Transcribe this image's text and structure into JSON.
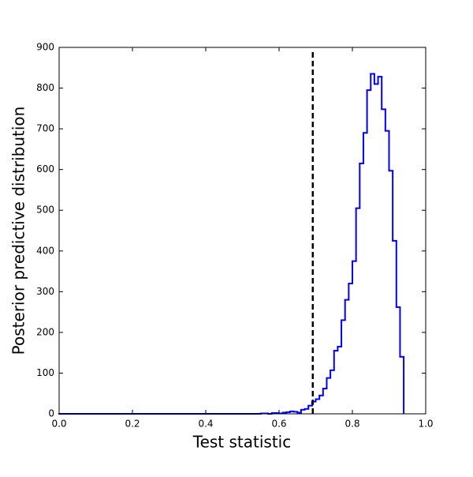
{
  "chart_data": {
    "type": "histogram",
    "xlabel": "Test statistic",
    "ylabel": "Posterior predictive distribution",
    "bins": [
      0,
      0.01,
      0.02,
      0.03,
      0.04,
      0.05,
      0.06,
      0.07,
      0.08,
      0.09,
      0.1,
      0.11,
      0.12,
      0.13,
      0.14,
      0.15,
      0.16,
      0.17,
      0.18,
      0.19,
      0.2,
      0.21,
      0.22,
      0.23,
      0.24,
      0.25,
      0.26,
      0.27,
      0.28,
      0.29,
      0.3,
      0.31,
      0.32,
      0.33,
      0.34,
      0.35,
      0.36,
      0.37,
      0.38,
      0.39,
      0.4,
      0.41,
      0.42,
      0.43,
      0.44,
      0.45,
      0.46,
      0.47,
      0.48,
      0.49,
      0.5,
      0.51,
      0.52,
      0.53,
      0.54,
      0.55,
      0.56,
      0.57,
      0.58,
      0.59,
      0.6,
      0.61,
      0.62,
      0.63,
      0.64,
      0.65,
      0.66,
      0.67,
      0.68,
      0.69,
      0.7,
      0.71,
      0.72,
      0.73,
      0.74,
      0.75,
      0.76,
      0.77,
      0.78,
      0.79,
      0.8,
      0.81,
      0.82,
      0.83,
      0.84,
      0.85,
      0.86,
      0.87,
      0.88,
      0.89,
      0.9,
      0.91,
      0.92,
      0.93,
      0.94
    ],
    "values": [
      0,
      0,
      0,
      0,
      0,
      0,
      0,
      0,
      0,
      0,
      0,
      0,
      0,
      0,
      0,
      0,
      0,
      0,
      0,
      0,
      0,
      0,
      0,
      0,
      0,
      0,
      0,
      0,
      0,
      0,
      0,
      0,
      0,
      0,
      0,
      0,
      0,
      0,
      0,
      0,
      0,
      0,
      0,
      0,
      0,
      0,
      0,
      0,
      0,
      0,
      0,
      0,
      0,
      0,
      0,
      1,
      1,
      0,
      2,
      2,
      1,
      3,
      4,
      6,
      5,
      3,
      10,
      12,
      20,
      30,
      36,
      45,
      62,
      88,
      107,
      155,
      165,
      230,
      280,
      320,
      375,
      505,
      615,
      690,
      795,
      835,
      810,
      828,
      748,
      695,
      597,
      425,
      262,
      140
    ],
    "color": "#0000ff",
    "observed_value": 0.692,
    "observed_color": "#000000",
    "xlim": [
      0,
      1
    ],
    "xticks": [
      {
        "value": 0,
        "label": "0.0"
      },
      0.2,
      0.4,
      0.6,
      0.8,
      {
        "value": 1,
        "label": "1.0"
      }
    ],
    "ylim": [
      0,
      900
    ],
    "yticks": [
      0,
      100,
      200,
      300,
      400,
      500,
      600,
      700,
      800,
      900
    ],
    "grid": false
  }
}
